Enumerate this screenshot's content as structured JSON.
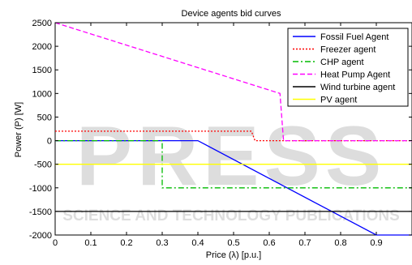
{
  "chart_data": {
    "type": "line",
    "title": "Device agents bid curves",
    "xlabel": "Price (λ) [p.u.]",
    "ylabel": "Power (P) [W]",
    "xlim": [
      0,
      1
    ],
    "ylim": [
      -2000,
      2500
    ],
    "xticks": [
      "0",
      "0.1",
      "0.2",
      "0.3",
      "0.4",
      "0.5",
      "0.6",
      "0.7",
      "0.8",
      "0.9"
    ],
    "yticks": [
      "2500",
      "2000",
      "1500",
      "1000",
      "500",
      "0",
      "-500",
      "-1000",
      "-1500",
      "-2000"
    ],
    "grid": false,
    "legend_position": "top-right",
    "series": [
      {
        "name": "Fossil Fuel Agent",
        "color": "#0000ff",
        "dash": "solid",
        "points": [
          [
            0,
            0
          ],
          [
            0.4,
            0
          ],
          [
            0.9,
            -2000
          ],
          [
            1.0,
            -2000
          ]
        ]
      },
      {
        "name": "Freezer agent",
        "color": "#ff0000",
        "dash": "dotted",
        "points": [
          [
            0,
            200
          ],
          [
            0.55,
            200
          ],
          [
            0.56,
            0
          ],
          [
            1.0,
            0
          ]
        ]
      },
      {
        "name": "CHP agent",
        "color": "#00bb00",
        "dash": "dashdot",
        "points": [
          [
            0,
            0
          ],
          [
            0.3,
            0
          ],
          [
            0.3,
            -1000
          ],
          [
            1.0,
            -1000
          ]
        ]
      },
      {
        "name": "Heat Pump Agent",
        "color": "#ff00ff",
        "dash": "dashed",
        "points": [
          [
            0,
            2500
          ],
          [
            0.63,
            1000
          ],
          [
            0.64,
            0
          ],
          [
            1.0,
            0
          ]
        ]
      },
      {
        "name": "Wind turbine agent",
        "color": "#000000",
        "dash": "solid",
        "points": [
          [
            0,
            -1500
          ],
          [
            1.0,
            -1500
          ]
        ]
      },
      {
        "name": "PV agent",
        "color": "#ffff00",
        "dash": "solid",
        "points": [
          [
            0,
            -500
          ],
          [
            1.0,
            -500
          ]
        ]
      }
    ]
  },
  "watermark": {
    "main": "PRESS",
    "sub": "SCIENCE AND TECHNOLOGY PUBLICATIONS"
  }
}
